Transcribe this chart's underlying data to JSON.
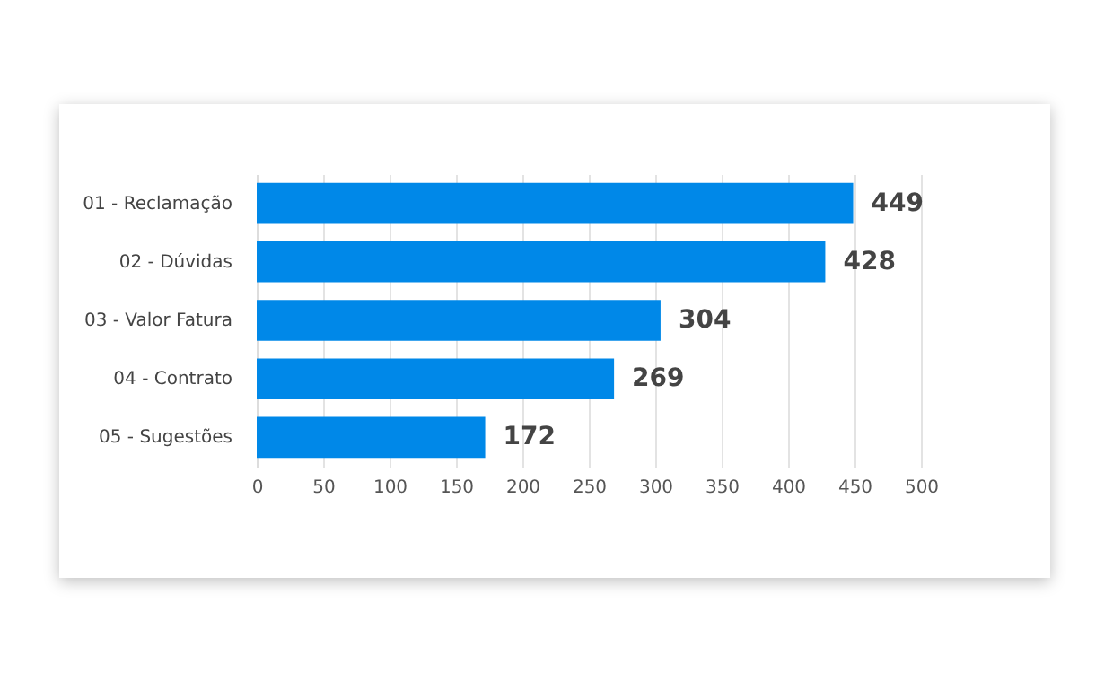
{
  "chart_data": {
    "type": "bar",
    "orientation": "horizontal",
    "categories": [
      "01 - Reclamação",
      "02 - Dúvidas",
      "03 - Valor Fatura",
      "04 - Contrato",
      "05 - Sugestões"
    ],
    "values": [
      449,
      428,
      304,
      269,
      172
    ],
    "data_labels": true,
    "color": "#0088e8",
    "xlim": [
      0,
      500
    ],
    "xticks": [
      0,
      50,
      100,
      150,
      200,
      250,
      300,
      350,
      400,
      450,
      500
    ],
    "grid": "x"
  }
}
